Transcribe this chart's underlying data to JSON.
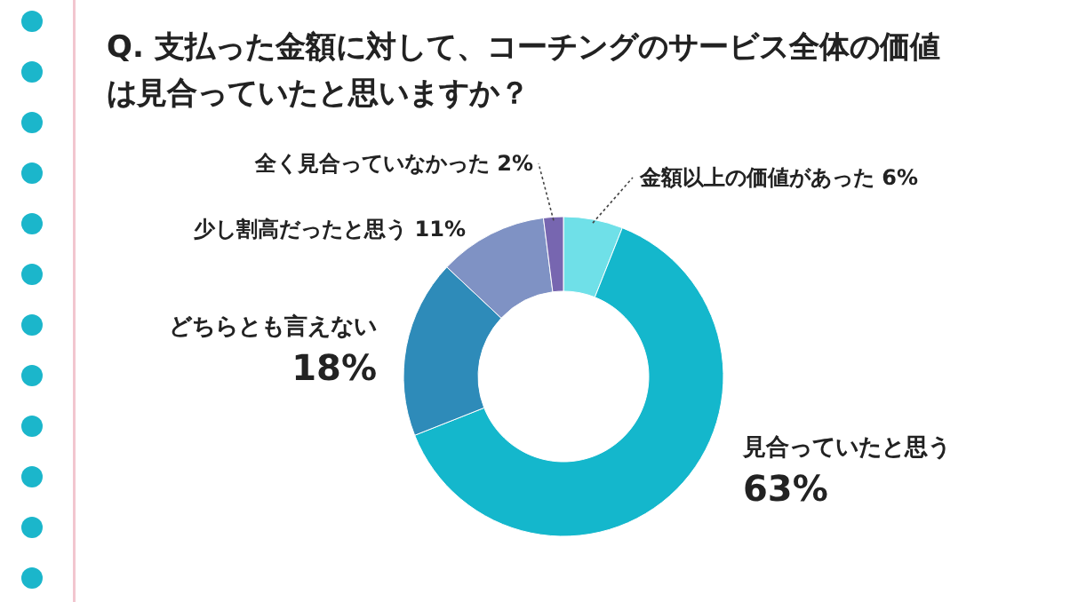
{
  "chart_data": {
    "type": "donut",
    "title": "Q. 支払った金額に対して、コーチングのサービス全体の価値は見合っていたと思いますか？",
    "categories": [
      "金額以上の価値があった",
      "見合っていたと思う",
      "どちらとも言えない",
      "少し割高だったと思う",
      "全く見合っていなかった"
    ],
    "values": [
      6,
      63,
      18,
      11,
      2
    ],
    "value_labels": [
      "6%",
      "63%",
      "18%",
      "11%",
      "2%"
    ],
    "colors": [
      "#6fe0e8",
      "#14b7cc",
      "#2e8bb9",
      "#7f92c4",
      "#7766b0"
    ]
  }
}
